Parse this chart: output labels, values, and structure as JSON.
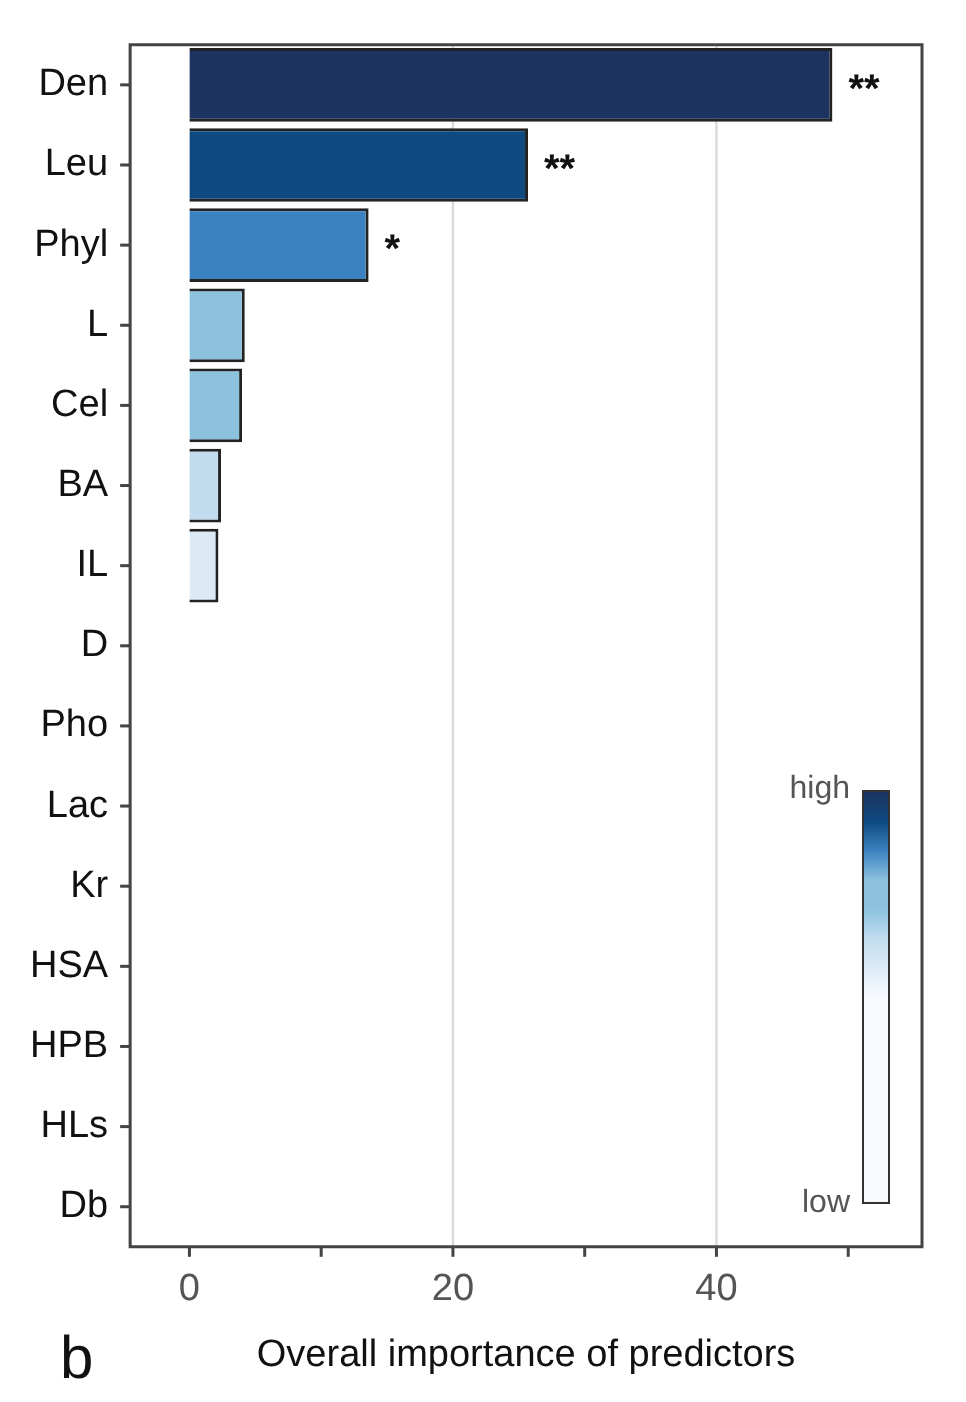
{
  "chart_data": {
    "type": "bar",
    "orientation": "horizontal",
    "xlabel": "Overall importance of predictors",
    "categories": [
      "Den",
      "Leu",
      "Phyl",
      "L",
      "Cel",
      "BA",
      "IL",
      "D",
      "Pho",
      "Lac",
      "Kr",
      "HSA",
      "HPB",
      "HLs",
      "Db"
    ],
    "values": [
      48.8,
      25.7,
      13.6,
      4.2,
      4.0,
      2.4,
      2.2,
      0,
      0,
      0,
      0,
      0,
      0,
      0,
      0
    ],
    "colors": [
      "#1d3461",
      "#0e4a80",
      "#3a82c0",
      "#8cc2de",
      "#8cc2de",
      "#c2dcef",
      "#dceaf6",
      "#f7fbff",
      "#f7fbff",
      "#f7fbff",
      "#f7fbff",
      "#f7fbff",
      "#f7fbff",
      "#f7fbff",
      "#f7fbff"
    ],
    "xlim": [
      -4.5,
      55.6
    ],
    "xticks": [
      0,
      {
        "value": 10,
        "label": null
      },
      20,
      {
        "value": 30,
        "label": null
      },
      40,
      {
        "value": 50,
        "label": null
      }
    ],
    "grid": "x",
    "legend": false,
    "annotations": [
      {
        "text": "**",
        "x": 48.8,
        "y": "Den"
      },
      {
        "text": "**",
        "x": 25.7,
        "y": "Leu"
      },
      {
        "text": "*",
        "x": 13.6,
        "y": "Phyl"
      },
      "b",
      "high",
      "low"
    ]
  }
}
